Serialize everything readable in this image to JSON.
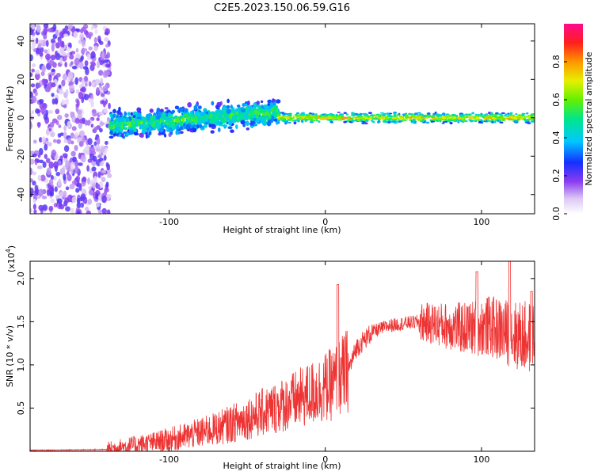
{
  "title": "C2E5.2023.150.06.59.G16",
  "chart_data": [
    {
      "type": "heatmap",
      "title": "",
      "xlabel": "Height of straight line (km)",
      "ylabel": "Frequency (Hz)",
      "xlim": [
        -189,
        134
      ],
      "ylim": [
        -50,
        49
      ],
      "x_ticks": [
        -100,
        0,
        100
      ],
      "x_tick_labels": [
        "-100",
        "0",
        "100"
      ],
      "y_ticks": [
        -40,
        -20,
        0,
        20,
        40
      ],
      "y_tick_labels": [
        "-40",
        "-20",
        "0",
        "20",
        "40"
      ],
      "colorbar": {
        "label": "Normalized spectral amplitude",
        "range": [
          0,
          1
        ],
        "ticks": [
          0.0,
          0.2,
          0.4,
          0.6,
          0.8
        ],
        "tick_labels": [
          "0.0",
          "0.2",
          "0.4",
          "0.6",
          "0.8"
        ],
        "colormap": "rainbow (white-violet-blue-cyan-green-yellow-orange-red-magenta)"
      },
      "regions": [
        {
          "x_range": [
            -189,
            -138
          ],
          "freq_range": [
            -50,
            49
          ],
          "amplitude": "low",
          "pattern": "scattered noise"
        },
        {
          "x_range": [
            -138,
            -30
          ],
          "freq_center_start": -4,
          "freq_center_end": 3,
          "half_width": 9,
          "amplitude": "medium"
        },
        {
          "x_range": [
            -30,
            134
          ],
          "freq_center": 0,
          "half_width": 3,
          "amplitude": "high",
          "pattern": "narrow stable line"
        }
      ]
    },
    {
      "type": "line",
      "title": "",
      "xlabel": "Height of straight line (km)",
      "ylabel": "SNR (10 * v/v)",
      "y_scale_label": "(x10",
      "y_scale_exponent": "4",
      "xlim": [
        -189,
        134
      ],
      "ylim": [
        0,
        2.2
      ],
      "x_ticks": [
        -100,
        0,
        100
      ],
      "x_tick_labels": [
        "-100",
        "0",
        "100"
      ],
      "y_ticks": [
        0.5,
        1.0,
        1.5,
        2.0
      ],
      "y_tick_labels": [
        "0.5",
        "1.0",
        "1.5",
        "2.0"
      ],
      "color": "#ee3333",
      "trend_points": [
        {
          "x": -189,
          "y": 0.01
        },
        {
          "x": -140,
          "y": 0.02
        },
        {
          "x": -130,
          "y": 0.05
        },
        {
          "x": -110,
          "y": 0.1
        },
        {
          "x": -90,
          "y": 0.17
        },
        {
          "x": -70,
          "y": 0.26
        },
        {
          "x": -55,
          "y": 0.35
        },
        {
          "x": -40,
          "y": 0.45
        },
        {
          "x": -25,
          "y": 0.55
        },
        {
          "x": -15,
          "y": 0.62
        },
        {
          "x": -5,
          "y": 0.7
        },
        {
          "x": 5,
          "y": 0.78
        },
        {
          "x": 15,
          "y": 0.95
        },
        {
          "x": 20,
          "y": 1.2
        },
        {
          "x": 30,
          "y": 1.38
        },
        {
          "x": 40,
          "y": 1.45
        },
        {
          "x": 50,
          "y": 1.48
        },
        {
          "x": 60,
          "y": 1.5
        },
        {
          "x": 75,
          "y": 1.46
        },
        {
          "x": 90,
          "y": 1.42
        },
        {
          "x": 105,
          "y": 1.45
        },
        {
          "x": 120,
          "y": 1.35
        },
        {
          "x": 134,
          "y": 1.3
        }
      ],
      "spikes": [
        {
          "x": 8,
          "y": 1.93
        },
        {
          "x": 118,
          "y": 2.2
        },
        {
          "x": 132,
          "y": 1.85
        },
        {
          "x": 97,
          "y": 2.08
        }
      ]
    }
  ]
}
